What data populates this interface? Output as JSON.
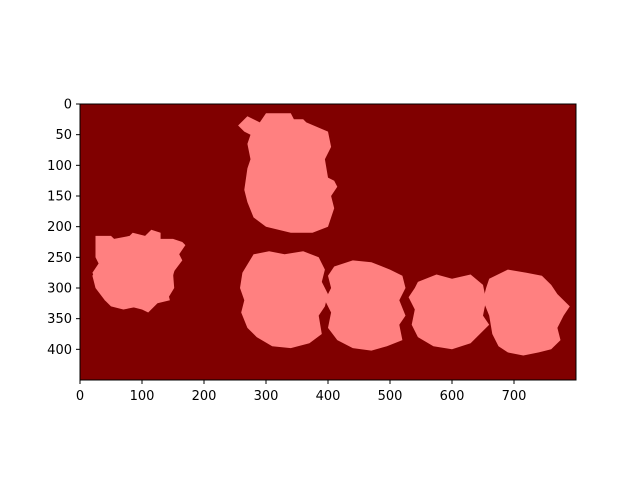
{
  "chart_data": {
    "type": "heatmap",
    "title": "",
    "xlabel": "",
    "ylabel": "",
    "xlim": [
      0,
      800
    ],
    "ylim": [
      450,
      0
    ],
    "x_ticks": [
      0,
      100,
      200,
      300,
      400,
      500,
      600,
      700
    ],
    "y_ticks": [
      0,
      50,
      100,
      150,
      200,
      250,
      300,
      350,
      400
    ],
    "background_color": "#800000",
    "foreground_color": "#ff8080",
    "grid": false,
    "legend": "none",
    "regions": [
      {
        "points": [
          [
            270,
            20
          ],
          [
            290,
            30
          ],
          [
            300,
            15
          ],
          [
            340,
            15
          ],
          [
            345,
            25
          ],
          [
            360,
            25
          ],
          [
            365,
            30
          ],
          [
            400,
            45
          ],
          [
            405,
            70
          ],
          [
            395,
            90
          ],
          [
            400,
            120
          ],
          [
            410,
            125
          ],
          [
            415,
            135
          ],
          [
            405,
            150
          ],
          [
            410,
            170
          ],
          [
            400,
            200
          ],
          [
            375,
            210
          ],
          [
            340,
            210
          ],
          [
            300,
            200
          ],
          [
            280,
            185
          ],
          [
            270,
            160
          ],
          [
            265,
            140
          ],
          [
            270,
            105
          ],
          [
            275,
            90
          ],
          [
            270,
            65
          ],
          [
            275,
            50
          ],
          [
            265,
            45
          ],
          [
            255,
            35
          ]
        ]
      },
      {
        "points": [
          [
            25,
            215
          ],
          [
            50,
            215
          ],
          [
            55,
            220
          ],
          [
            80,
            215
          ],
          [
            85,
            210
          ],
          [
            105,
            215
          ],
          [
            115,
            205
          ],
          [
            130,
            210
          ],
          [
            130,
            220
          ],
          [
            150,
            220
          ],
          [
            165,
            225
          ],
          [
            170,
            230
          ],
          [
            160,
            245
          ],
          [
            150,
            280
          ],
          [
            140,
            300
          ],
          [
            145,
            320
          ],
          [
            125,
            325
          ],
          [
            110,
            340
          ],
          [
            100,
            335
          ],
          [
            95,
            330
          ],
          [
            70,
            335
          ],
          [
            50,
            330
          ],
          [
            40,
            320
          ],
          [
            45,
            300
          ],
          [
            30,
            295
          ],
          [
            20,
            275
          ],
          [
            30,
            260
          ],
          [
            25,
            250
          ]
        ]
      },
      {
        "points": [
          [
            60,
            240
          ],
          [
            90,
            230
          ],
          [
            110,
            235
          ],
          [
            130,
            228
          ],
          [
            155,
            235
          ],
          [
            165,
            255
          ],
          [
            150,
            275
          ],
          [
            152,
            300
          ],
          [
            140,
            320
          ],
          [
            120,
            325
          ],
          [
            100,
            335
          ],
          [
            80,
            330
          ],
          [
            60,
            332
          ],
          [
            40,
            320
          ],
          [
            25,
            300
          ],
          [
            20,
            280
          ],
          [
            30,
            262
          ],
          [
            45,
            250
          ]
        ]
      },
      {
        "points": [
          [
            280,
            245
          ],
          [
            305,
            240
          ],
          [
            330,
            245
          ],
          [
            360,
            240
          ],
          [
            385,
            250
          ],
          [
            395,
            270
          ],
          [
            390,
            290
          ],
          [
            400,
            310
          ],
          [
            395,
            330
          ],
          [
            385,
            345
          ],
          [
            390,
            375
          ],
          [
            370,
            390
          ],
          [
            340,
            398
          ],
          [
            310,
            395
          ],
          [
            285,
            380
          ],
          [
            270,
            365
          ],
          [
            260,
            340
          ],
          [
            265,
            320
          ],
          [
            258,
            300
          ],
          [
            262,
            275
          ]
        ]
      },
      {
        "points": [
          [
            410,
            265
          ],
          [
            440,
            255
          ],
          [
            470,
            258
          ],
          [
            500,
            270
          ],
          [
            520,
            280
          ],
          [
            525,
            300
          ],
          [
            515,
            320
          ],
          [
            525,
            345
          ],
          [
            515,
            360
          ],
          [
            520,
            385
          ],
          [
            495,
            395
          ],
          [
            470,
            402
          ],
          [
            440,
            398
          ],
          [
            415,
            385
          ],
          [
            400,
            365
          ],
          [
            405,
            340
          ],
          [
            395,
            320
          ],
          [
            405,
            300
          ],
          [
            400,
            280
          ]
        ]
      },
      {
        "points": [
          [
            545,
            290
          ],
          [
            575,
            278
          ],
          [
            600,
            285
          ],
          [
            630,
            278
          ],
          [
            650,
            295
          ],
          [
            655,
            320
          ],
          [
            650,
            345
          ],
          [
            660,
            360
          ],
          [
            645,
            375
          ],
          [
            630,
            390
          ],
          [
            600,
            400
          ],
          [
            570,
            395
          ],
          [
            545,
            380
          ],
          [
            535,
            360
          ],
          [
            540,
            335
          ],
          [
            530,
            315
          ],
          [
            540,
            300
          ]
        ]
      },
      {
        "points": [
          [
            660,
            285
          ],
          [
            690,
            270
          ],
          [
            720,
            275
          ],
          [
            745,
            280
          ],
          [
            760,
            295
          ],
          [
            770,
            310
          ],
          [
            790,
            330
          ],
          [
            780,
            345
          ],
          [
            770,
            365
          ],
          [
            775,
            385
          ],
          [
            760,
            400
          ],
          [
            740,
            405
          ],
          [
            715,
            410
          ],
          [
            690,
            405
          ],
          [
            675,
            395
          ],
          [
            665,
            375
          ],
          [
            660,
            345
          ],
          [
            650,
            320
          ],
          [
            655,
            300
          ]
        ]
      }
    ]
  }
}
